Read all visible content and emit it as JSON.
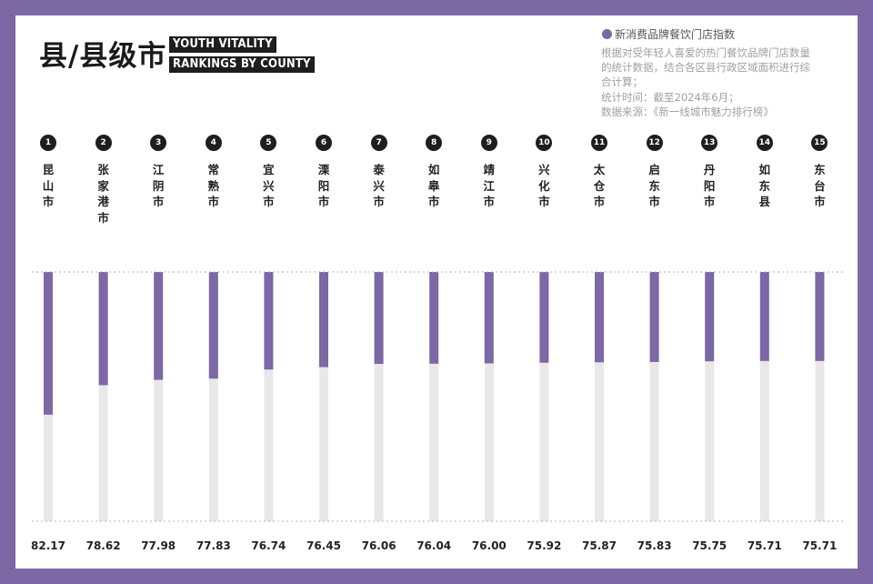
{
  "header": {
    "title": "县/县级市",
    "badge_line1": "YOUTH VITALITY",
    "badge_line2": "RANKINGS BY COUNTY"
  },
  "legend": {
    "label": "新消费品牌餐饮门店指数",
    "color": "#7b68a5"
  },
  "notes": [
    "根据对受年轻人喜爱的热门餐饮品牌门店数量",
    "的统计数据，结合各区县行政区域面积进行综",
    "合计算；",
    "统计时间：截至2024年6月；",
    "数据来源：《新一线城市魅力排行榜》"
  ],
  "colors": {
    "background": "#7b68a5",
    "bar": "#7b68a5",
    "track": "#e8e8e8",
    "text": "#1e1e1e"
  },
  "chart_data": {
    "type": "bar",
    "title": "县/县级市",
    "ranks": [
      "1",
      "2",
      "3",
      "4",
      "5",
      "6",
      "7",
      "8",
      "9",
      "10",
      "11",
      "12",
      "13",
      "14",
      "15"
    ],
    "categories": [
      "昆山市",
      "张家港市",
      "江阴市",
      "常熟市",
      "宜兴市",
      "溧阳市",
      "泰兴市",
      "如皋市",
      "靖江市",
      "兴化市",
      "太仓市",
      "启东市",
      "丹阳市",
      "如东县",
      "东台市"
    ],
    "value_labels": [
      "82.17",
      "78.62",
      "77.98",
      "77.83",
      "76.74",
      "76.45",
      "76.06",
      "76.04",
      "76.00",
      "75.92",
      "75.87",
      "75.83",
      "75.75",
      "75.71",
      "75.71"
    ],
    "series": [
      {
        "name": "新消费品牌餐饮门店指数",
        "values": [
          82.17,
          78.62,
          77.98,
          77.83,
          76.74,
          76.45,
          76.06,
          76.04,
          76.0,
          75.92,
          75.87,
          75.83,
          75.75,
          75.71,
          75.71
        ]
      }
    ],
    "orientation": "vertical-downward",
    "ylim": [
      65,
      95
    ],
    "grid": false,
    "legend_position": "top-right"
  }
}
